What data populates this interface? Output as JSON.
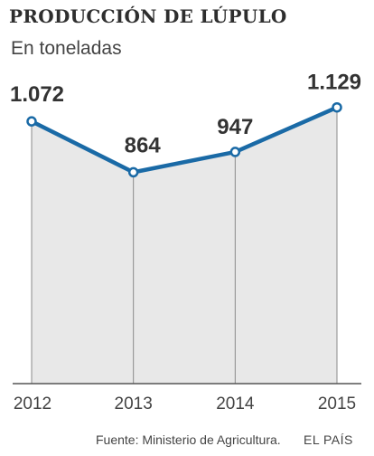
{
  "title": "PRODUCCIÓN DE LÚPULO",
  "subtitle": "En toneladas",
  "source": "Fuente: Ministerio de Agricultura.",
  "brand": "EL PAÍS",
  "colors": {
    "line": "#1a6aa6",
    "area": "#e8e8e8",
    "marker_fill": "#ffffff",
    "text": "#333333"
  },
  "chart_data": {
    "type": "area",
    "categories": [
      "2012",
      "2013",
      "2014",
      "2015"
    ],
    "values": [
      1072,
      864,
      947,
      1129
    ],
    "value_labels": [
      "1.072",
      "864",
      "947",
      "1.129"
    ],
    "title": "PRODUCCIÓN DE LÚPULO",
    "subtitle": "En toneladas",
    "xlabel": "",
    "ylabel": "",
    "ylim": [
      0,
      1250
    ],
    "grid": false,
    "legend": "none"
  }
}
